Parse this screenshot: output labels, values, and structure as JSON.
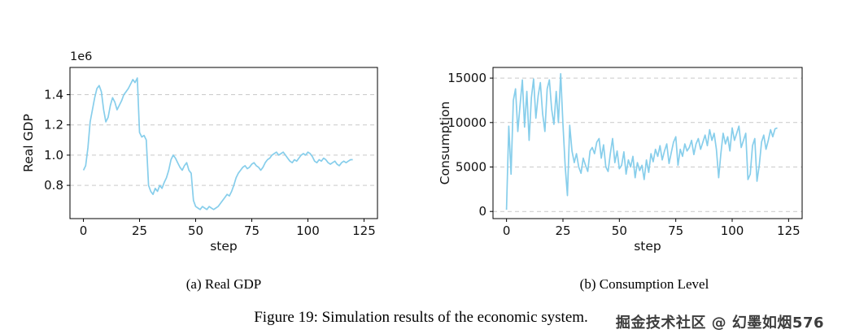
{
  "figure": {
    "caption": "Figure 19: Simulation results of the economic system.",
    "subcaptions": [
      "(a) Real GDP",
      "(b) Consumption Level"
    ],
    "watermark": "掘金技术社区 @ 幻墨如烟576"
  },
  "chart_data": [
    {
      "type": "line",
      "series_name": "real-gdp-series",
      "title": "",
      "xlabel": "step",
      "ylabel": "Real GDP",
      "y_offset_label": "1e6",
      "xlim": [
        -6,
        131
      ],
      "ylim": [
        0.58,
        1.58
      ],
      "xticks": [
        0,
        25,
        50,
        75,
        100,
        125
      ],
      "xtick_labels": [
        "0",
        "25",
        "50",
        "75",
        "100",
        "125"
      ],
      "yticks": [
        0.8,
        1.0,
        1.2,
        1.4
      ],
      "ytick_labels": [
        "0.8",
        "1.0",
        "1.2",
        "1.4"
      ],
      "grid": "horizontal-dashed",
      "legend": "none",
      "margin_left": 60,
      "colors": {
        "line": "#87ceeb",
        "grid": "#c9c9c9",
        "spine": "#000000"
      },
      "x": [
        0,
        1,
        2,
        3,
        4,
        5,
        6,
        7,
        8,
        9,
        10,
        11,
        12,
        13,
        14,
        15,
        16,
        17,
        18,
        19,
        20,
        21,
        22,
        23,
        24,
        25,
        26,
        27,
        28,
        29,
        30,
        31,
        32,
        33,
        34,
        35,
        36,
        37,
        38,
        39,
        40,
        41,
        42,
        43,
        44,
        45,
        46,
        47,
        48,
        49,
        50,
        51,
        52,
        53,
        54,
        55,
        56,
        57,
        58,
        59,
        60,
        61,
        62,
        63,
        64,
        65,
        66,
        67,
        68,
        69,
        70,
        71,
        72,
        73,
        74,
        75,
        76,
        77,
        78,
        79,
        80,
        81,
        82,
        83,
        84,
        85,
        86,
        87,
        88,
        89,
        90,
        91,
        92,
        93,
        94,
        95,
        96,
        97,
        98,
        99,
        100,
        101,
        102,
        103,
        104,
        105,
        106,
        107,
        108,
        109,
        110,
        111,
        112,
        113,
        114,
        115,
        116,
        117,
        118,
        119,
        120
      ],
      "y": [
        0.9,
        0.93,
        1.05,
        1.22,
        1.3,
        1.38,
        1.44,
        1.46,
        1.42,
        1.3,
        1.22,
        1.25,
        1.33,
        1.38,
        1.35,
        1.3,
        1.33,
        1.36,
        1.4,
        1.42,
        1.44,
        1.47,
        1.5,
        1.48,
        1.51,
        1.15,
        1.12,
        1.13,
        1.1,
        0.8,
        0.76,
        0.74,
        0.78,
        0.76,
        0.8,
        0.78,
        0.82,
        0.85,
        0.9,
        0.97,
        1.0,
        0.98,
        0.95,
        0.92,
        0.9,
        0.93,
        0.95,
        0.9,
        0.88,
        0.7,
        0.66,
        0.65,
        0.64,
        0.66,
        0.65,
        0.64,
        0.66,
        0.65,
        0.64,
        0.65,
        0.66,
        0.68,
        0.7,
        0.72,
        0.74,
        0.73,
        0.76,
        0.8,
        0.85,
        0.88,
        0.9,
        0.92,
        0.93,
        0.91,
        0.92,
        0.94,
        0.95,
        0.93,
        0.92,
        0.9,
        0.92,
        0.95,
        0.97,
        0.98,
        1.0,
        1.01,
        1.02,
        1.0,
        1.01,
        1.02,
        1.0,
        0.98,
        0.96,
        0.95,
        0.97,
        0.96,
        0.98,
        1.0,
        1.01,
        1.0,
        1.02,
        1.01,
        0.99,
        0.96,
        0.95,
        0.97,
        0.96,
        0.98,
        0.97,
        0.95,
        0.94,
        0.95,
        0.96,
        0.94,
        0.93,
        0.95,
        0.96,
        0.95,
        0.96,
        0.97,
        0.97
      ]
    },
    {
      "type": "line",
      "series_name": "consumption-series",
      "title": "",
      "xlabel": "step",
      "ylabel": "Consumption",
      "y_offset_label": "",
      "xlim": [
        -6,
        131
      ],
      "ylim": [
        -800,
        16200
      ],
      "xticks": [
        0,
        25,
        50,
        75,
        100,
        125
      ],
      "xtick_labels": [
        "0",
        "25",
        "50",
        "75",
        "100",
        "125"
      ],
      "yticks": [
        0,
        5000,
        10000,
        15000
      ],
      "ytick_labels": [
        "0",
        "5000",
        "10000",
        "15000"
      ],
      "grid": "horizontal-dashed",
      "legend": "none",
      "margin_left": 68,
      "colors": {
        "line": "#87ceeb",
        "grid": "#c9c9c9",
        "spine": "#000000"
      },
      "x": [
        0,
        1,
        2,
        3,
        4,
        5,
        6,
        7,
        8,
        9,
        10,
        11,
        12,
        13,
        14,
        15,
        16,
        17,
        18,
        19,
        20,
        21,
        22,
        23,
        24,
        25,
        26,
        27,
        28,
        29,
        30,
        31,
        32,
        33,
        34,
        35,
        36,
        37,
        38,
        39,
        40,
        41,
        42,
        43,
        44,
        45,
        46,
        47,
        48,
        49,
        50,
        51,
        52,
        53,
        54,
        55,
        56,
        57,
        58,
        59,
        60,
        61,
        62,
        63,
        64,
        65,
        66,
        67,
        68,
        69,
        70,
        71,
        72,
        73,
        74,
        75,
        76,
        77,
        78,
        79,
        80,
        81,
        82,
        83,
        84,
        85,
        86,
        87,
        88,
        89,
        90,
        91,
        92,
        93,
        94,
        95,
        96,
        97,
        98,
        99,
        100,
        101,
        102,
        103,
        104,
        105,
        106,
        107,
        108,
        109,
        110,
        111,
        112,
        113,
        114,
        115,
        116,
        117,
        118,
        119,
        120
      ],
      "y": [
        200,
        9600,
        4200,
        12500,
        13800,
        9000,
        12000,
        14800,
        9500,
        13500,
        8000,
        12800,
        14900,
        10500,
        13000,
        14500,
        11000,
        9000,
        13800,
        14800,
        11500,
        9800,
        13500,
        10000,
        15500,
        9800,
        5000,
        1800,
        9700,
        6800,
        5500,
        6500,
        5000,
        4300,
        6000,
        5200,
        4500,
        6800,
        7200,
        6500,
        7800,
        8200,
        6000,
        7500,
        5000,
        4500,
        6500,
        8200,
        5500,
        6800,
        4800,
        5200,
        6700,
        4200,
        5800,
        5000,
        6200,
        3800,
        5500,
        4600,
        5200,
        3600,
        5800,
        4400,
        6500,
        5600,
        7000,
        6200,
        7400,
        5800,
        6800,
        7600,
        5400,
        6600,
        7800,
        8400,
        5200,
        7000,
        6200,
        7600,
        6800,
        7200,
        8000,
        6400,
        7600,
        8200,
        7000,
        7800,
        8600,
        7400,
        9200,
        8000,
        8800,
        7000,
        3800,
        6500,
        8800,
        7600,
        8400,
        6800,
        9400,
        8000,
        8800,
        9600,
        7200,
        8000,
        8800,
        3600,
        4200,
        7400,
        8200,
        3400,
        5200,
        7800,
        8600,
        7000,
        8000,
        9200,
        8400,
        9300,
        9400
      ]
    }
  ]
}
